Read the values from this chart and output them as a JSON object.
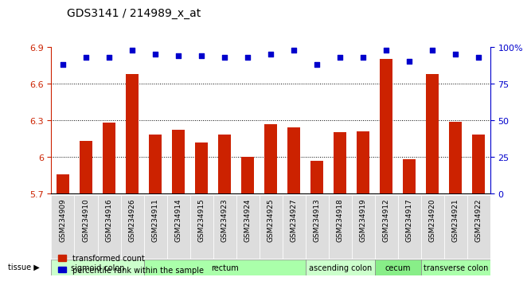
{
  "title": "GDS3141 / 214989_x_at",
  "samples": [
    "GSM234909",
    "GSM234910",
    "GSM234916",
    "GSM234926",
    "GSM234911",
    "GSM234914",
    "GSM234915",
    "GSM234923",
    "GSM234924",
    "GSM234925",
    "GSM234927",
    "GSM234913",
    "GSM234918",
    "GSM234919",
    "GSM234912",
    "GSM234917",
    "GSM234920",
    "GSM234921",
    "GSM234922"
  ],
  "bar_values": [
    5.86,
    6.13,
    6.28,
    6.68,
    6.18,
    6.22,
    6.12,
    6.18,
    6.0,
    6.27,
    6.24,
    5.97,
    6.2,
    6.21,
    6.8,
    5.98,
    6.68,
    6.29,
    6.18
  ],
  "percentile_values": [
    88,
    93,
    93,
    98,
    95,
    94,
    94,
    93,
    93,
    95,
    98,
    88,
    93,
    93,
    98,
    90,
    98,
    95,
    93
  ],
  "ylim_left": [
    5.7,
    6.9
  ],
  "ylim_right": [
    0,
    100
  ],
  "yticks_left": [
    5.7,
    6.0,
    6.3,
    6.6,
    6.9
  ],
  "yticks_right": [
    0,
    25,
    50,
    75,
    100
  ],
  "ytick_labels_left": [
    "5.7",
    "6",
    "6.3",
    "6.6",
    "6.9"
  ],
  "ytick_labels_right": [
    "0",
    "25",
    "50",
    "75",
    "100%"
  ],
  "bar_color": "#cc2200",
  "dot_color": "#0000cc",
  "grid_color": "#000000",
  "bg_color": "#ffffff",
  "tissue_groups": [
    {
      "label": "sigmoid colon",
      "start": 0,
      "end": 3,
      "color": "#ccffcc"
    },
    {
      "label": "rectum",
      "start": 4,
      "end": 10,
      "color": "#aaffaa"
    },
    {
      "label": "ascending colon",
      "start": 11,
      "end": 13,
      "color": "#ccffcc"
    },
    {
      "label": "cecum",
      "start": 14,
      "end": 15,
      "color": "#88ee88"
    },
    {
      "label": "transverse colon",
      "start": 16,
      "end": 18,
      "color": "#aaffaa"
    }
  ],
  "legend_bar_label": "transformed count",
  "legend_dot_label": "percentile rank within the sample",
  "xlabel_tissue": "tissue",
  "tick_label_bg": "#dddddd"
}
